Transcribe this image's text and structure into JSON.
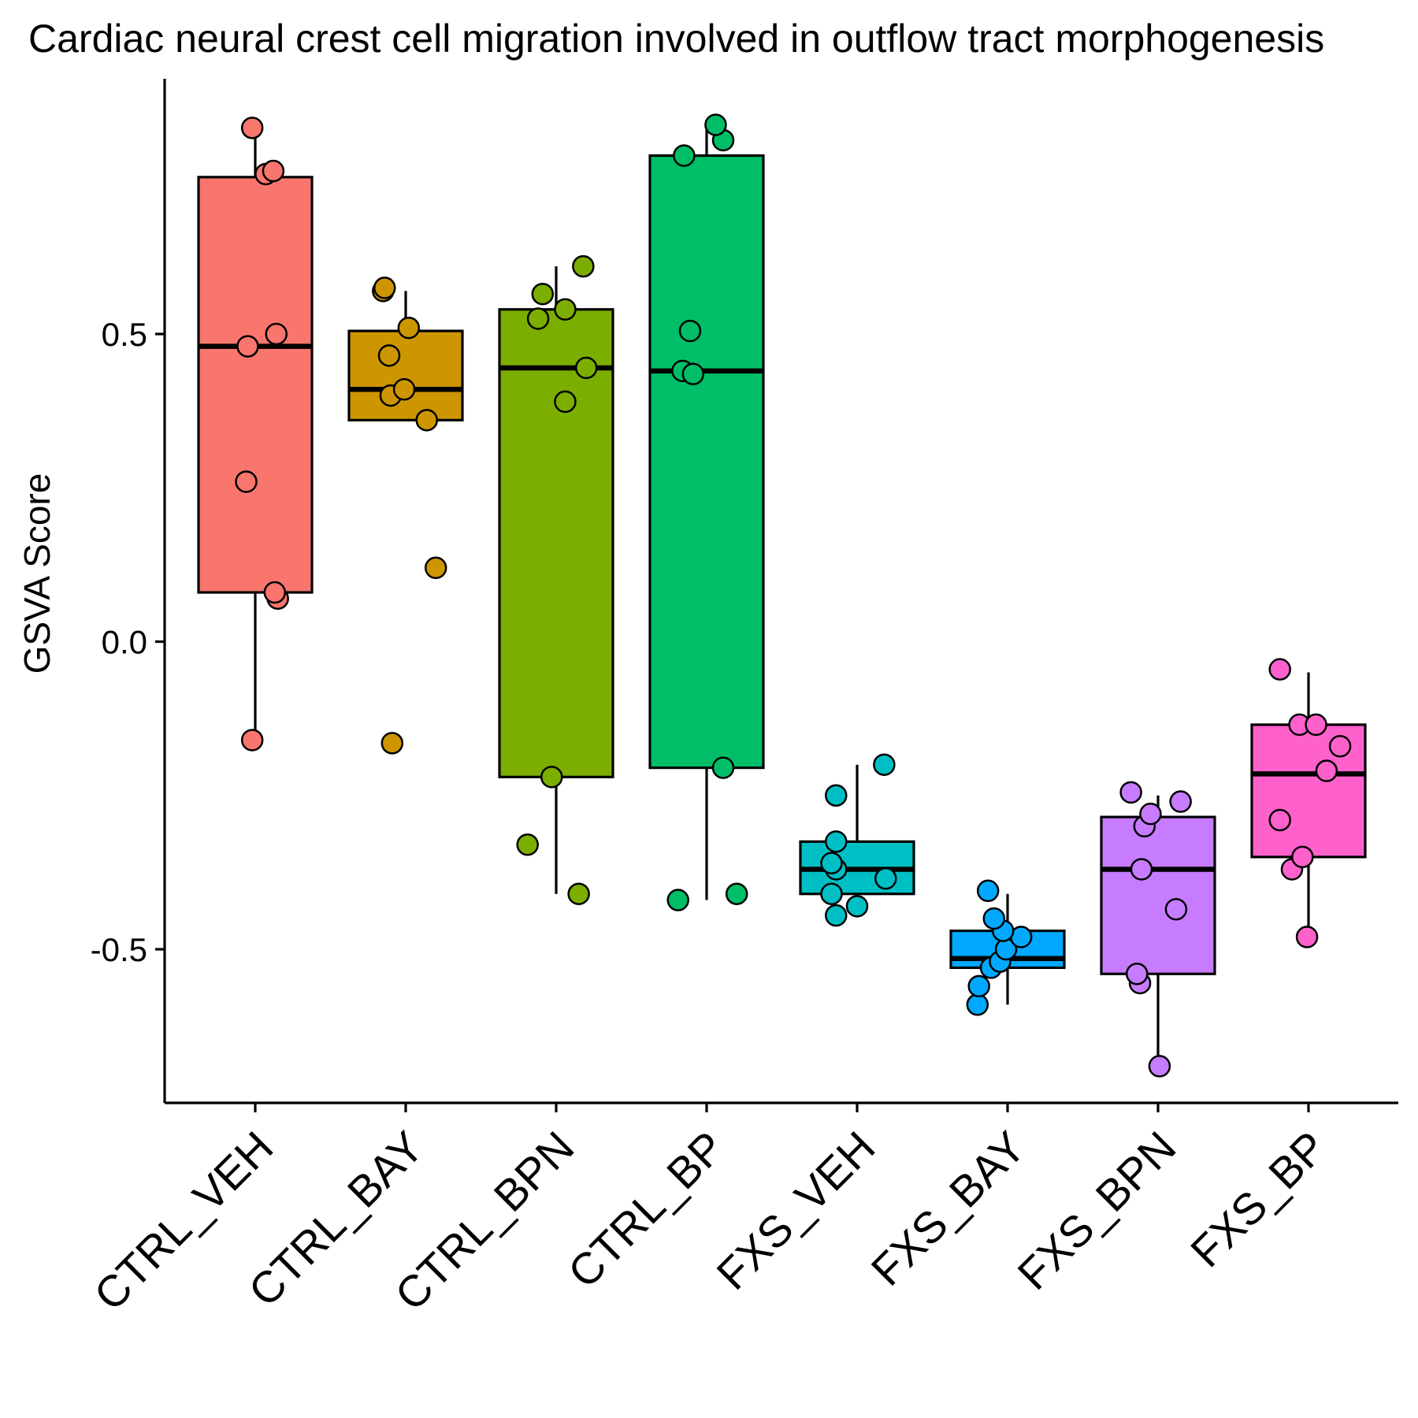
{
  "chart_data": {
    "type": "box",
    "title": "Cardiac neural crest cell migration involved in outflow tract morphogenesis",
    "xlabel": "",
    "ylabel": "GSVA Score",
    "ylim": [
      -0.76,
      0.92
    ],
    "yticks": [
      -0.5,
      0.0,
      0.5
    ],
    "ytick_labels": [
      "-0.5",
      "0.0",
      "0.5"
    ],
    "grid": false,
    "legend": "none",
    "categories": [
      "CTRL_VEH",
      "CTRL_BAY",
      "CTRL_BPN",
      "CTRL_BP",
      "FXS_VEH",
      "FXS_BAY",
      "FXS_BPN",
      "FXS_BP"
    ],
    "colors": [
      "#F8766D",
      "#CD9600",
      "#7CAE00",
      "#00BE67",
      "#00BFC4",
      "#00A9FF",
      "#C77CFF",
      "#FF61CC"
    ],
    "boxes": [
      {
        "q1": 0.08,
        "median": 0.48,
        "q3": 0.755,
        "whisker_low": -0.16,
        "whisker_high": 0.835
      },
      {
        "q1": 0.36,
        "median": 0.41,
        "q3": 0.505,
        "whisker_low": 0.36,
        "whisker_high": 0.57
      },
      {
        "q1": -0.22,
        "median": 0.445,
        "q3": 0.54,
        "whisker_low": -0.41,
        "whisker_high": 0.61
      },
      {
        "q1": -0.205,
        "median": 0.44,
        "q3": 0.79,
        "whisker_low": -0.42,
        "whisker_high": 0.84
      },
      {
        "q1": -0.41,
        "median": -0.37,
        "q3": -0.325,
        "whisker_low": -0.41,
        "whisker_high": -0.2
      },
      {
        "q1": -0.53,
        "median": -0.515,
        "q3": -0.47,
        "whisker_low": -0.59,
        "whisker_high": -0.41
      },
      {
        "q1": -0.54,
        "median": -0.37,
        "q3": -0.285,
        "whisker_low": -0.69,
        "whisker_high": -0.25
      },
      {
        "q1": -0.35,
        "median": -0.215,
        "q3": -0.135,
        "whisker_low": -0.48,
        "whisker_high": -0.05
      }
    ],
    "points": [
      [
        {
          "x": -0.02,
          "y": -0.16
        },
        {
          "x": -0.06,
          "y": 0.26
        },
        {
          "x": 0.15,
          "y": 0.07
        },
        {
          "x": 0.13,
          "y": 0.08
        },
        {
          "x": -0.05,
          "y": 0.48
        },
        {
          "x": 0.14,
          "y": 0.5
        },
        {
          "x": 0.07,
          "y": 0.76
        },
        {
          "x": 0.12,
          "y": 0.765
        },
        {
          "x": -0.02,
          "y": 0.835
        }
      ],
      [
        {
          "x": -0.09,
          "y": -0.165
        },
        {
          "x": 0.2,
          "y": 0.12
        },
        {
          "x": 0.14,
          "y": 0.36
        },
        {
          "x": -0.1,
          "y": 0.4
        },
        {
          "x": -0.01,
          "y": 0.41
        },
        {
          "x": -0.11,
          "y": 0.465
        },
        {
          "x": 0.02,
          "y": 0.51
        },
        {
          "x": -0.15,
          "y": 0.57
        },
        {
          "x": -0.14,
          "y": 0.575
        }
      ],
      [
        {
          "x": -0.19,
          "y": -0.33
        },
        {
          "x": 0.15,
          "y": -0.41
        },
        {
          "x": -0.03,
          "y": -0.22
        },
        {
          "x": 0.06,
          "y": 0.39
        },
        {
          "x": 0.2,
          "y": 0.445
        },
        {
          "x": -0.12,
          "y": 0.525
        },
        {
          "x": 0.06,
          "y": 0.54
        },
        {
          "x": -0.09,
          "y": 0.565
        },
        {
          "x": 0.18,
          "y": 0.61
        }
      ],
      [
        {
          "x": -0.19,
          "y": -0.42
        },
        {
          "x": 0.2,
          "y": -0.41
        },
        {
          "x": 0.11,
          "y": -0.205
        },
        {
          "x": -0.16,
          "y": 0.44
        },
        {
          "x": -0.09,
          "y": 0.435
        },
        {
          "x": -0.11,
          "y": 0.505
        },
        {
          "x": -0.15,
          "y": 0.79
        },
        {
          "x": 0.11,
          "y": 0.815
        },
        {
          "x": 0.06,
          "y": 0.84
        }
      ],
      [
        {
          "x": -0.14,
          "y": -0.445
        },
        {
          "x": 0.0,
          "y": -0.43
        },
        {
          "x": -0.17,
          "y": -0.41
        },
        {
          "x": 0.19,
          "y": -0.385
        },
        {
          "x": -0.14,
          "y": -0.37
        },
        {
          "x": -0.17,
          "y": -0.36
        },
        {
          "x": -0.14,
          "y": -0.325
        },
        {
          "x": -0.14,
          "y": -0.25
        },
        {
          "x": 0.18,
          "y": -0.2
        }
      ],
      [
        {
          "x": -0.2,
          "y": -0.59
        },
        {
          "x": -0.19,
          "y": -0.56
        },
        {
          "x": -0.11,
          "y": -0.53
        },
        {
          "x": -0.05,
          "y": -0.52
        },
        {
          "x": -0.01,
          "y": -0.5
        },
        {
          "x": 0.09,
          "y": -0.48
        },
        {
          "x": -0.03,
          "y": -0.47
        },
        {
          "x": -0.09,
          "y": -0.45
        },
        {
          "x": -0.13,
          "y": -0.405
        }
      ],
      [
        {
          "x": 0.01,
          "y": -0.69
        },
        {
          "x": -0.12,
          "y": -0.555
        },
        {
          "x": -0.14,
          "y": -0.54
        },
        {
          "x": 0.12,
          "y": -0.435
        },
        {
          "x": -0.11,
          "y": -0.37
        },
        {
          "x": -0.09,
          "y": -0.3
        },
        {
          "x": -0.05,
          "y": -0.28
        },
        {
          "x": -0.18,
          "y": -0.245
        },
        {
          "x": 0.15,
          "y": -0.26
        }
      ],
      [
        {
          "x": -0.01,
          "y": -0.48
        },
        {
          "x": -0.11,
          "y": -0.37
        },
        {
          "x": -0.04,
          "y": -0.35
        },
        {
          "x": -0.19,
          "y": -0.29
        },
        {
          "x": 0.12,
          "y": -0.21
        },
        {
          "x": 0.21,
          "y": -0.17
        },
        {
          "x": -0.06,
          "y": -0.135
        },
        {
          "x": 0.05,
          "y": -0.135
        },
        {
          "x": -0.19,
          "y": -0.045
        }
      ]
    ]
  }
}
